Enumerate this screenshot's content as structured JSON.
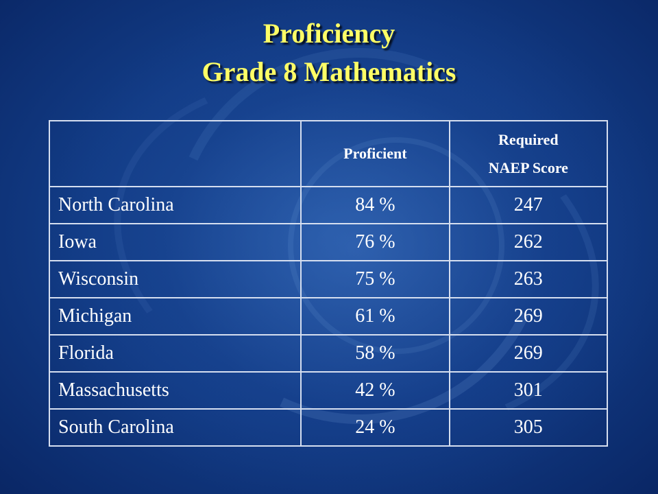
{
  "title": {
    "line1": "Proficiency",
    "line2": "Grade 8 Mathematics"
  },
  "table": {
    "headers": {
      "col1": "",
      "col2": "Proficient",
      "col3_line1": "Required",
      "col3_line2": "NAEP Score"
    },
    "rows": [
      {
        "state": "North Carolina",
        "proficient": "84 %",
        "score": "247"
      },
      {
        "state": "Iowa",
        "proficient": "76 %",
        "score": "262"
      },
      {
        "state": "Wisconsin",
        "proficient": "75 %",
        "score": "263"
      },
      {
        "state": "Michigan",
        "proficient": "61 %",
        "score": "269"
      },
      {
        "state": "Florida",
        "proficient": "58 %",
        "score": "269"
      },
      {
        "state": "Massachusetts",
        "proficient": "42 %",
        "score": "301"
      },
      {
        "state": "South Carolina",
        "proficient": "24 %",
        "score": "305"
      }
    ]
  },
  "colors": {
    "title": "#ffff66",
    "background": "#123c86",
    "table_text": "#ffffff",
    "table_border": "#d6dff0"
  }
}
